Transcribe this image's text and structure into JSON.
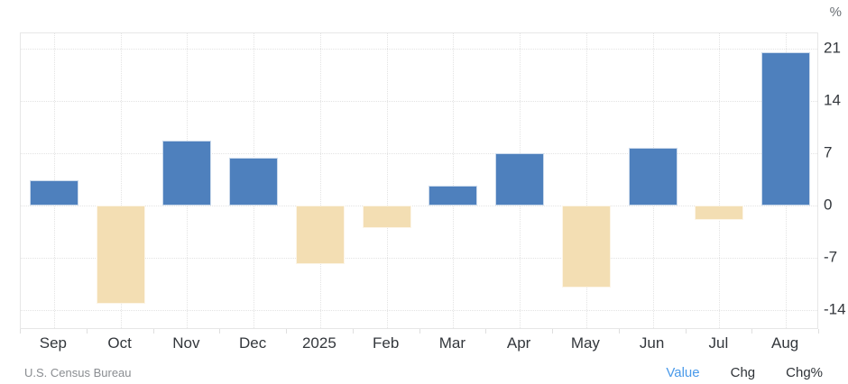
{
  "unit_label": "%",
  "chart_data": {
    "type": "bar",
    "title": "",
    "xlabel": "",
    "ylabel": "%",
    "categories": [
      "Sep",
      "Oct",
      "Nov",
      "Dec",
      "2025",
      "Feb",
      "Mar",
      "Apr",
      "May",
      "Jun",
      "Jul",
      "Aug"
    ],
    "values": [
      3.4,
      -13.2,
      8.7,
      6.4,
      -7.8,
      -3.0,
      2.7,
      7.0,
      -11.0,
      7.7,
      -1.9,
      20.5
    ],
    "yticks": [
      21,
      14,
      7,
      0,
      -7,
      -14
    ],
    "ylim": [
      -16.65,
      23.05
    ],
    "grid": true,
    "legend_position": "none",
    "positive_color": "#4E80BD",
    "negative_color": "#F3DEB3"
  },
  "footer": {
    "source": "U.S. Census Bureau",
    "options": [
      {
        "label": "Value",
        "active": true
      },
      {
        "label": "Chg",
        "active": false
      },
      {
        "label": "Chg%",
        "active": false
      }
    ]
  },
  "colors": {
    "positive_bar": "#4E80BD",
    "negative_bar": "#F3DEB3",
    "grid_line": "#E3E3E3",
    "axis_text": "#33373C",
    "muted_text": "#8A8D91",
    "active_option": "#4A9AEA"
  }
}
